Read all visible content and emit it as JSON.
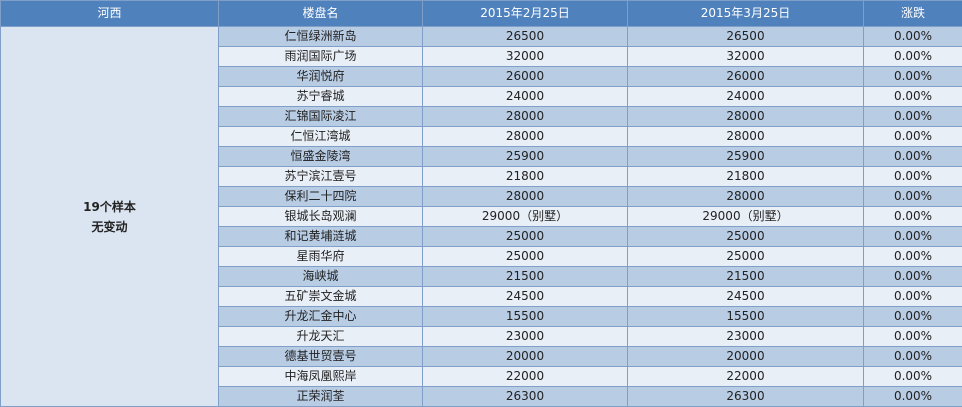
{
  "table": {
    "header": [
      "河西",
      "楼盘名",
      "2015年2月25日",
      "2015年3月25日",
      "涨跌"
    ],
    "group": [
      "19个样本",
      "无变动"
    ],
    "rows": [
      [
        "仁恒绿洲新岛",
        "26500",
        "26500",
        "0.00%"
      ],
      [
        "雨润国际广场",
        "32000",
        "32000",
        "0.00%"
      ],
      [
        "华润悦府",
        "26000",
        "26000",
        "0.00%"
      ],
      [
        "苏宁睿城",
        "24000",
        "24000",
        "0.00%"
      ],
      [
        "汇锦国际凌江",
        "28000",
        "28000",
        "0.00%"
      ],
      [
        "仁恒江湾城",
        "28000",
        "28000",
        "0.00%"
      ],
      [
        "恒盛金陵湾",
        "25900",
        "25900",
        "0.00%"
      ],
      [
        "苏宁滨江壹号",
        "21800",
        "21800",
        "0.00%"
      ],
      [
        "保利二十四院",
        "28000",
        "28000",
        "0.00%"
      ],
      [
        "银城长岛观澜",
        "29000（别墅）",
        "29000（别墅）",
        "0.00%"
      ],
      [
        "和记黄埔涟城",
        "25000",
        "25000",
        "0.00%"
      ],
      [
        "星雨华府",
        "25000",
        "25000",
        "0.00%"
      ],
      [
        "海峡城",
        "21500",
        "21500",
        "0.00%"
      ],
      [
        "五矿崇文金城",
        "24500",
        "24500",
        "0.00%"
      ],
      [
        "升龙汇金中心",
        "15500",
        "15500",
        "0.00%"
      ],
      [
        "升龙天汇",
        "23000",
        "23000",
        "0.00%"
      ],
      [
        "德基世贸壹号",
        "20000",
        "20000",
        "0.00%"
      ],
      [
        "中海凤凰熙岸",
        "22000",
        "22000",
        "0.00%"
      ],
      [
        "正荣润荃",
        "26300",
        "26300",
        "0.00%"
      ]
    ]
  }
}
